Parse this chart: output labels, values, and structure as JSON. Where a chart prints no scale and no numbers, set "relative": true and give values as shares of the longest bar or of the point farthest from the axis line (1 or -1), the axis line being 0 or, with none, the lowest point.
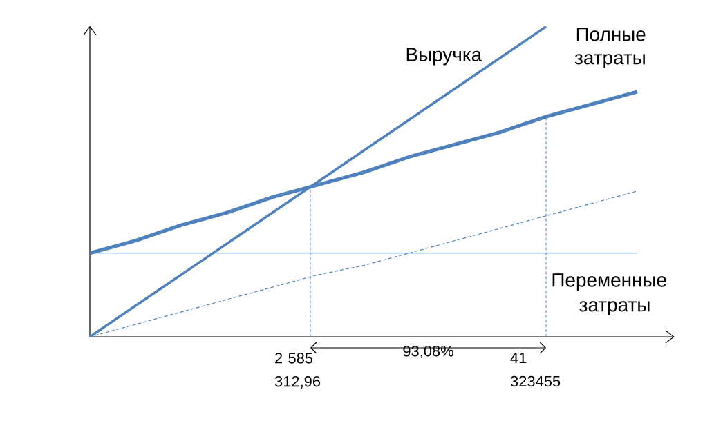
{
  "chart_data": {
    "type": "line",
    "relative": true,
    "categories": [
      null,
      null,
      null,
      null,
      null,
      null,
      null,
      null,
      null,
      null,
      null,
      null,
      null
    ],
    "series": [
      {
        "name": "Выручка",
        "color": "#4f81bd",
        "values": [
          0,
          0.1,
          0.2,
          0.3,
          0.4,
          0.5,
          0.6,
          0.7,
          0.8,
          0.9,
          1.0,
          null,
          null
        ]
      },
      {
        "name": "Полные затраты",
        "color": "#4f81bd",
        "values": [
          0.27,
          0.31,
          0.36,
          0.4,
          0.45,
          0.49,
          0.53,
          0.58,
          0.62,
          0.66,
          0.71,
          0.75,
          0.79
        ]
      },
      {
        "name": "Переменные затраты",
        "color": "#4f81bd",
        "line_style": "dashed",
        "values": [
          0,
          0.04,
          0.08,
          0.12,
          0.16,
          0.2,
          0.23,
          0.27,
          0.31,
          0.35,
          0.39,
          0.43,
          0.47
        ]
      },
      {
        "color": "#4f81bd",
        "values": [
          0.27,
          0.27,
          0.27,
          0.27,
          0.27,
          0.27,
          0.27,
          0.27,
          0.27,
          0.27,
          0.27,
          0.27,
          0.27
        ]
      }
    ],
    "annotations": [
      "2 585 312,96",
      "41 323455",
      "93,08%"
    ],
    "marker": "none"
  }
}
